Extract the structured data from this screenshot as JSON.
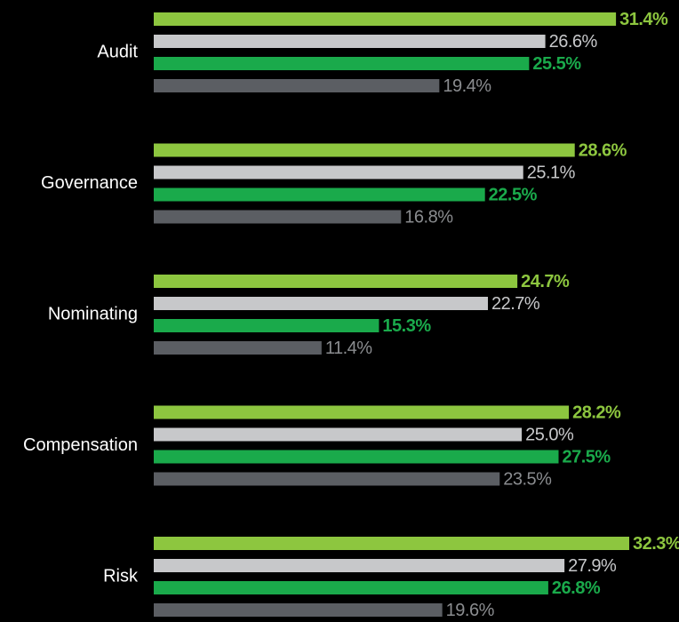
{
  "chart_data": {
    "type": "bar",
    "orientation": "horizontal",
    "categories": [
      "Audit",
      "Governance",
      "Nominating",
      "Compensation",
      "Risk"
    ],
    "series": [
      {
        "color": "#8dc63f",
        "values": [
          31.4,
          28.6,
          24.7,
          28.2,
          32.3
        ],
        "value_labels": [
          "31.4%",
          "28.6%",
          "24.7%",
          "28.2%",
          "32.3%"
        ]
      },
      {
        "color": "#c7c8ca",
        "values": [
          26.6,
          25.1,
          22.7,
          25.0,
          27.9
        ],
        "value_labels": [
          "26.6%",
          "25.1%",
          "22.7%",
          "25.0%",
          "27.9%"
        ]
      },
      {
        "color": "#1aaa4b",
        "values": [
          25.5,
          22.5,
          15.3,
          27.5,
          26.8
        ],
        "value_labels": [
          "25.5%",
          "22.5%",
          "15.3%",
          "27.5%",
          "26.8%"
        ]
      },
      {
        "color": "#5b5e63",
        "values": [
          19.4,
          16.8,
          11.4,
          23.5,
          19.6
        ],
        "value_labels": [
          "19.4%",
          "16.8%",
          "11.4%",
          "23.5%",
          "19.6%"
        ]
      }
    ]
  }
}
